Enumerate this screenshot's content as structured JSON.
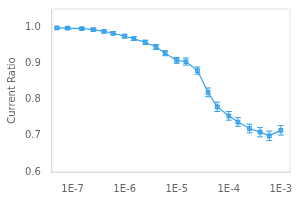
{
  "chart_data": {
    "type": "line",
    "x": [
      5e-08,
      8e-08,
      1.5e-07,
      2.5e-07,
      4e-07,
      6e-07,
      1e-06,
      1.5e-06,
      2.5e-06,
      4e-06,
      6e-06,
      1e-05,
      1.5e-05,
      2.5e-05,
      4e-05,
      6e-05,
      0.0001,
      0.00015,
      0.00025,
      0.0004,
      0.0006,
      0.001
    ],
    "values": [
      0.998,
      0.997,
      0.996,
      0.993,
      0.988,
      0.983,
      0.975,
      0.968,
      0.958,
      0.945,
      0.928,
      0.908,
      0.905,
      0.88,
      0.82,
      0.78,
      0.755,
      0.738,
      0.72,
      0.71,
      0.7,
      0.715
    ],
    "yerr": [
      0.003,
      0.003,
      0.003,
      0.004,
      0.004,
      0.004,
      0.005,
      0.005,
      0.006,
      0.007,
      0.007,
      0.008,
      0.01,
      0.01,
      0.012,
      0.013,
      0.012,
      0.012,
      0.012,
      0.013,
      0.013,
      0.013
    ],
    "ylabel": "Current Ratio",
    "log": "x",
    "xlim": [
      4e-08,
      0.0015
    ],
    "xticks": [
      {
        "value": 1e-07,
        "label": "1E-7"
      },
      {
        "value": 1e-06,
        "label": "1E-6"
      },
      {
        "value": 1e-05,
        "label": "1E-5"
      },
      {
        "value": 0.0001,
        "label": "1E-4"
      },
      {
        "value": 0.001,
        "label": "1E-3"
      }
    ],
    "ylim": [
      0.6,
      1.05
    ],
    "yticks": [
      0.6,
      0.7,
      0.8,
      0.9,
      {
        "value": 1,
        "label": "1.0"
      }
    ],
    "marker": "square",
    "grid": false
  }
}
